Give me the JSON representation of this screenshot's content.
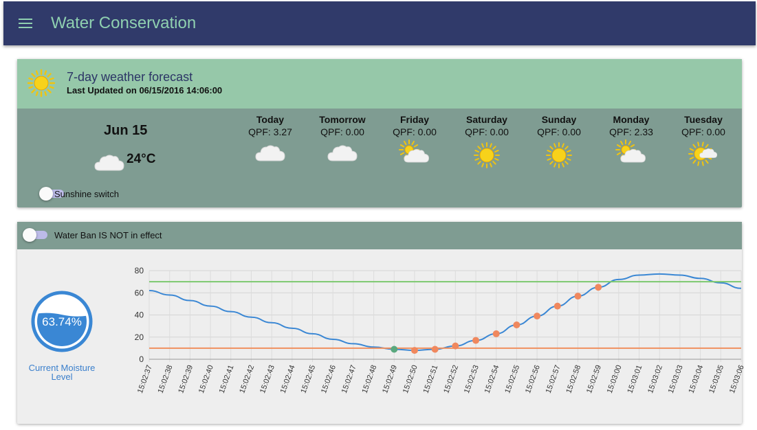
{
  "app": {
    "title": "Water Conservation"
  },
  "forecast": {
    "title": "7-day weather forecast",
    "updated": "Last Updated on 06/15/2016 14:06:00",
    "today": {
      "date": "Jun 15",
      "temp": "24°C",
      "icon": "cloud-icon"
    },
    "days": [
      {
        "name": "Today",
        "qpf": "QPF: 3.27",
        "icon": "cloud"
      },
      {
        "name": "Tomorrow",
        "qpf": "QPF: 0.00",
        "icon": "cloud"
      },
      {
        "name": "Friday",
        "qpf": "QPF: 0.00",
        "icon": "partly"
      },
      {
        "name": "Saturday",
        "qpf": "QPF: 0.00",
        "icon": "sun"
      },
      {
        "name": "Sunday",
        "qpf": "QPF: 0.00",
        "icon": "sun"
      },
      {
        "name": "Monday",
        "qpf": "QPF: 2.33",
        "icon": "partly"
      },
      {
        "name": "Tuesday",
        "qpf": "QPF: 0.00",
        "icon": "sun-cloud"
      }
    ],
    "sunshine_label": "Sunshine switch"
  },
  "water": {
    "ban_label": "Water Ban IS NOT in effect",
    "moisture_value": "63.74%",
    "moisture_fraction": 0.6374,
    "moisture_label_line1": "Current Moisture",
    "moisture_label_line2": "Level"
  },
  "colors": {
    "line": "#3a87d4",
    "upper": "#7cc86e",
    "lower": "#f0905e",
    "point": "#f0885e",
    "current_point": "#5aa87e",
    "gauge": "#3a87d4"
  },
  "chart_data": {
    "type": "line",
    "x": [
      "15:02:37",
      "15:02:38",
      "15:02:39",
      "15:02:40",
      "15:02:41",
      "15:02:42",
      "15:02:43",
      "15:02:44",
      "15:02:45",
      "15:02:46",
      "15:02:47",
      "15:02:48",
      "15:02:49",
      "15:02:50",
      "15:02:51",
      "15:02:52",
      "15:02:53",
      "15:02:54",
      "15:02:55",
      "15:02:56",
      "15:02:57",
      "15:02:58",
      "15:02:59",
      "15:03:00",
      "15:03:01",
      "15:03:02",
      "15:03:03",
      "15:03:04",
      "15:03:05",
      "15:03:06"
    ],
    "ylim": [
      0,
      80
    ],
    "yticks": [
      0,
      20,
      40,
      60,
      80
    ],
    "series": [
      {
        "values": [
          62,
          58,
          53,
          48,
          43,
          38,
          33,
          28,
          23,
          18,
          14,
          11,
          9,
          8,
          9,
          12,
          17,
          23,
          31,
          39,
          48,
          57,
          65,
          72,
          76,
          77,
          76,
          73,
          69,
          64
        ]
      },
      {
        "values": [
          70,
          70,
          70,
          70,
          70,
          70,
          70,
          70,
          70,
          70,
          70,
          70,
          70,
          70,
          70,
          70,
          70,
          70,
          70,
          70,
          70,
          70,
          70,
          70,
          70,
          70,
          70,
          70,
          70,
          70
        ]
      },
      {
        "values": [
          10,
          10,
          10,
          10,
          10,
          10,
          10,
          10,
          10,
          10,
          10,
          10,
          10,
          10,
          10,
          10,
          10,
          10,
          10,
          10,
          10,
          10,
          10,
          10,
          10,
          10,
          10,
          10,
          10,
          10
        ]
      }
    ],
    "points": {
      "start_index": 12,
      "values": [
        9,
        8,
        9,
        12,
        17,
        23,
        31,
        39,
        48,
        57,
        65
      ]
    },
    "grid": true
  }
}
